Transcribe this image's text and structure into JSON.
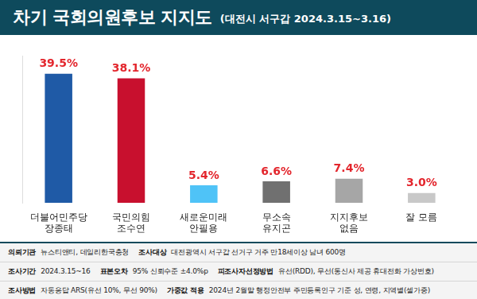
{
  "chart_data": {
    "type": "bar",
    "title": "차기 국회의원후보 지지도",
    "subtitle": "(대전시 서구갑 2024.3.15~3.16)",
    "categories": [
      [
        "더불어민주당",
        "장종태"
      ],
      [
        "국민의힘",
        "조수연"
      ],
      [
        "새로운미래",
        "안필용"
      ],
      [
        "무소속",
        "유지곤"
      ],
      [
        "지지후보",
        "없음"
      ],
      [
        "잘 모름"
      ]
    ],
    "values": [
      39.5,
      38.1,
      5.4,
      6.6,
      7.4,
      3.0
    ],
    "value_labels": [
      "39.5%",
      "38.1%",
      "5.4%",
      "6.6%",
      "7.4%",
      "3.0%"
    ],
    "colors": [
      "#1f5aa6",
      "#c8102e",
      "#4fc3f7",
      "#707070",
      "#a6a6a6",
      "#c8c8c8"
    ],
    "ylim": [
      0,
      45
    ],
    "grid": false,
    "data_labels": true,
    "tick_labels": "x"
  },
  "footer": {
    "rows": [
      [
        [
          "의뢰기관",
          "뉴스티앤티, 데일리한국충청"
        ],
        [
          "조사대상",
          "대전광역시 서구갑 선거구 거주 만18세이상 남녀 600명"
        ]
      ],
      [
        [
          "조사기간",
          "2024.3.15~16"
        ],
        [
          "표본오차",
          "95% 신뢰수준 ±4.0%p"
        ],
        [
          "피조사자선정방법",
          "유선(RDD), 무선(통신사 제공 휴대전화 가상번호)"
        ]
      ],
      [
        [
          "조사방법",
          "자동응답 ARS(유선 10%, 무선 90%)"
        ],
        [
          "가중값 적용",
          "2024년 2월말 행정안전부 주민등록인구 기준 성, 연령, 지역별(셀가중)"
        ]
      ]
    ]
  }
}
